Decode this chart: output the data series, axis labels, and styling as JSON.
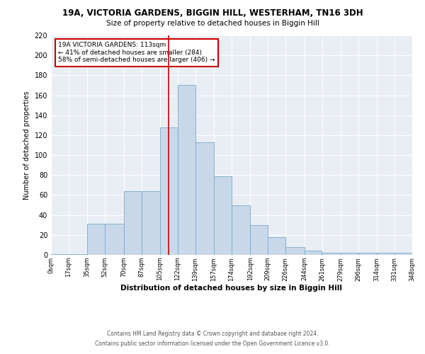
{
  "title1": "19A, VICTORIA GARDENS, BIGGIN HILL, WESTERHAM, TN16 3DH",
  "title2": "Size of property relative to detached houses in Biggin Hill",
  "xlabel": "Distribution of detached houses by size in Biggin Hill",
  "ylabel": "Number of detached properties",
  "footer1": "Contains HM Land Registry data © Crown copyright and database right 2024.",
  "footer2": "Contains public sector information licensed under the Open Government Licence v3.0.",
  "bin_labels": [
    "0sqm",
    "17sqm",
    "35sqm",
    "52sqm",
    "70sqm",
    "87sqm",
    "105sqm",
    "122sqm",
    "139sqm",
    "157sqm",
    "174sqm",
    "192sqm",
    "209sqm",
    "226sqm",
    "244sqm",
    "261sqm",
    "279sqm",
    "296sqm",
    "314sqm",
    "331sqm",
    "348sqm"
  ],
  "heights": [
    1,
    1,
    31,
    31,
    64,
    64,
    128,
    170,
    113,
    79,
    50,
    30,
    18,
    8,
    4,
    2,
    2,
    2,
    2,
    2
  ],
  "property_size": 113,
  "annotation_title": "19A VICTORIA GARDENS: 113sqm",
  "annotation_line1": "← 41% of detached houses are smaller (284)",
  "annotation_line2": "58% of semi-detached houses are larger (406) →",
  "bar_color": "#c8d8e8",
  "bar_edge_color": "#7aaac8",
  "line_color": "#cc0000",
  "annotation_box_color": "#cc0000",
  "background_color": "#e8eef4",
  "ylim": [
    0,
    220
  ],
  "yticks": [
    0,
    20,
    40,
    60,
    80,
    100,
    120,
    140,
    160,
    180,
    200,
    220
  ]
}
